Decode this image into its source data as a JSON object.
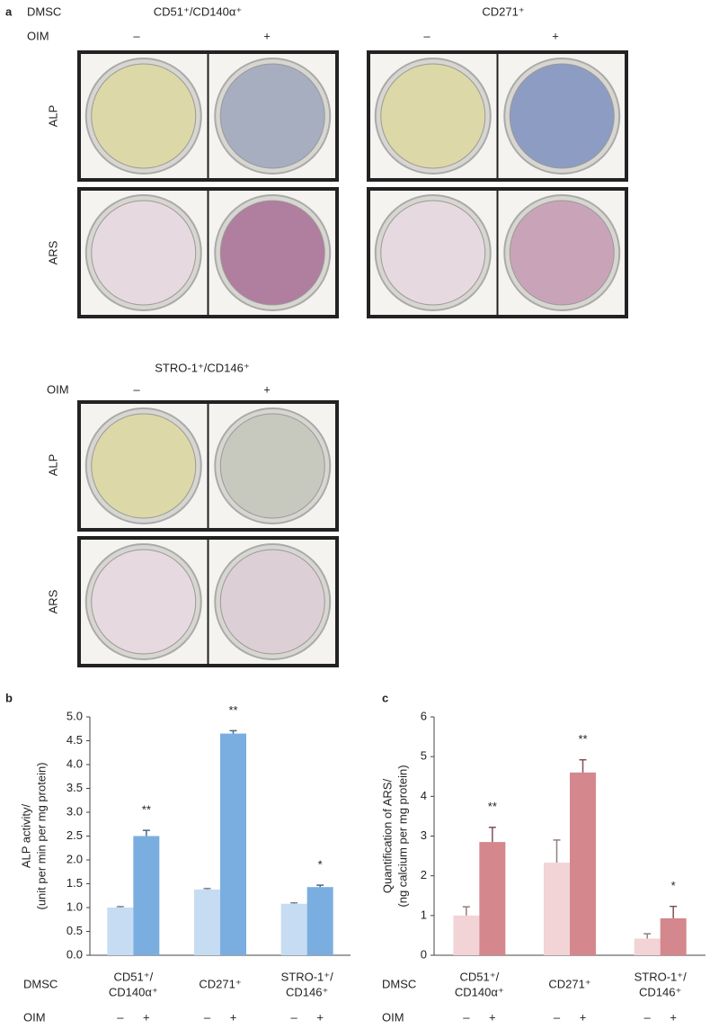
{
  "panel_a": {
    "label": "a",
    "dmsc_label": "DMSC",
    "oim_label": "OIM",
    "conditions": [
      "–",
      "+"
    ],
    "stains": [
      "ALP",
      "ARS"
    ],
    "groups": [
      "CD51⁺/CD140α⁺",
      "CD271⁺",
      "STRO-1⁺/CD146⁺"
    ]
  },
  "chart_data": [
    {
      "type": "bar",
      "panel_label": "b",
      "ylabel": [
        "ALP activity/",
        "(unit per min per mg protein)"
      ],
      "categories": [
        [
          "CD51⁺/",
          "CD140α⁺"
        ],
        [
          "CD271⁺"
        ],
        [
          "STRO-1⁺/",
          "CD146⁺"
        ]
      ],
      "row_labels": [
        "DMSC",
        "OIM"
      ],
      "series": [
        {
          "name": "–",
          "color": "#c6dcf2",
          "values": [
            1.0,
            1.38,
            1.08
          ],
          "errors": [
            0.02,
            0.02,
            0.02
          ]
        },
        {
          "name": "+",
          "color": "#7aaee0",
          "values": [
            2.5,
            4.65,
            1.43
          ],
          "errors": [
            0.12,
            0.06,
            0.04
          ],
          "annotations": [
            "**",
            "**",
            "*"
          ]
        }
      ],
      "ylim": [
        0,
        5
      ],
      "yticks": [
        {
          "value": 0,
          "label": "0.0"
        },
        {
          "value": 0.5,
          "label": "0.5"
        },
        {
          "value": 1,
          "label": "1.0"
        },
        {
          "value": 1.5,
          "label": "1.5"
        },
        {
          "value": 2,
          "label": "2.0"
        },
        {
          "value": 2.5,
          "label": "2.5"
        },
        {
          "value": 3,
          "label": "3.0"
        },
        {
          "value": 3.5,
          "label": "3.5"
        },
        {
          "value": 4,
          "label": "4.0"
        },
        {
          "value": 4.5,
          "label": "4.5"
        },
        {
          "value": 5,
          "label": "5.0"
        }
      ]
    },
    {
      "type": "bar",
      "panel_label": "c",
      "ylabel": [
        "Quantification of ARS/",
        "(ng calcium per mg protein)"
      ],
      "categories": [
        [
          "CD51⁺/",
          "CD140α⁺"
        ],
        [
          "CD271⁺"
        ],
        [
          "STRO-1⁺/",
          "CD146⁺"
        ]
      ],
      "row_labels": [
        "DMSC",
        "OIM"
      ],
      "series": [
        {
          "name": "–",
          "color": "#f2d3d6",
          "values": [
            1.0,
            2.33,
            0.42
          ],
          "errors": [
            0.22,
            0.57,
            0.12
          ]
        },
        {
          "name": "+",
          "color": "#d4878c",
          "values": [
            2.85,
            4.6,
            0.93
          ],
          "errors": [
            0.37,
            0.32,
            0.3
          ],
          "annotations": [
            "**",
            "**",
            "*"
          ]
        }
      ],
      "ylim": [
        0,
        6
      ],
      "yticks": [
        0,
        1,
        2,
        3,
        4,
        5,
        6
      ]
    }
  ]
}
